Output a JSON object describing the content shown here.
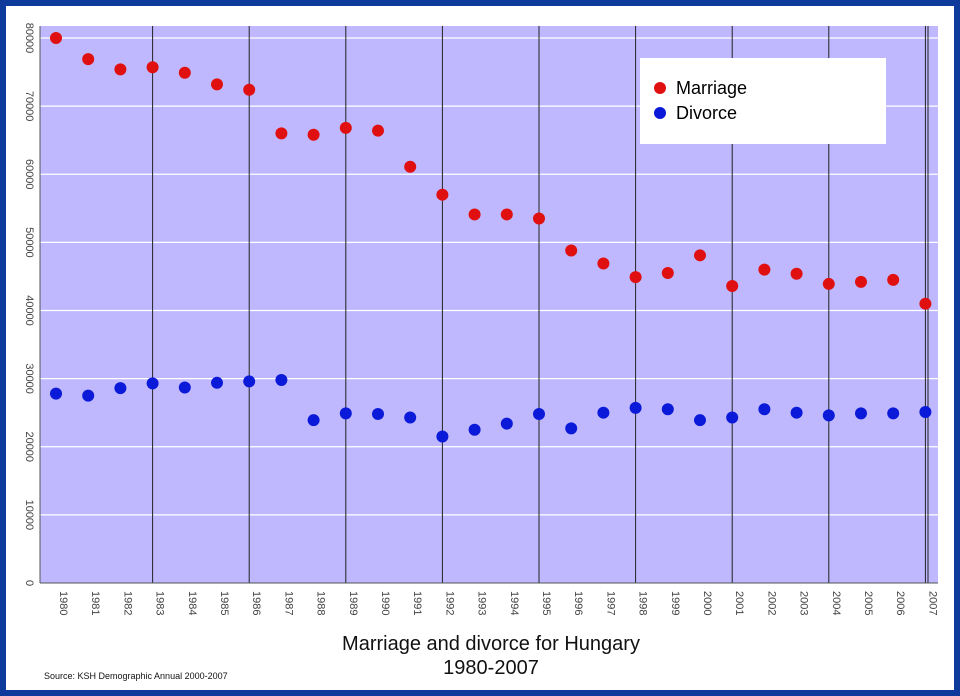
{
  "chart_data": {
    "type": "scatter",
    "title": "Marriage and divorce for Hungary",
    "subtitle": "1980-2007",
    "source": "Source: KSH Demographic Annual 2000-2007",
    "x": [
      1980,
      1981,
      1982,
      1983,
      1984,
      1985,
      1986,
      1987,
      1988,
      1989,
      1990,
      1991,
      1992,
      1993,
      1994,
      1995,
      1996,
      1997,
      1998,
      1999,
      2000,
      2001,
      2002,
      2003,
      2004,
      2005,
      2006,
      2007
    ],
    "x_tick_labels": [
      "1980",
      "1981",
      "1982",
      "1983",
      "1984",
      "1985",
      "1986",
      "1987",
      "1988",
      "1989",
      "1990",
      "1991",
      "1992",
      "1993",
      "1994",
      "1995",
      "1996",
      "1997",
      "1998",
      "1999",
      "2000",
      "2001",
      "2002",
      "2003",
      "2004",
      "2005",
      "2006",
      "2007"
    ],
    "y_tick_labels": [
      "0",
      "10000",
      "20000",
      "30000",
      "40000",
      "50000",
      "60000",
      "70000",
      "80000"
    ],
    "ylim": [
      0,
      80000
    ],
    "grid": true,
    "legend_position": "top-right",
    "series": [
      {
        "name": "Marriage",
        "color": "#e01010",
        "values": [
          80000,
          76900,
          75400,
          75700,
          74900,
          73200,
          72400,
          66000,
          65800,
          66800,
          66400,
          61100,
          57000,
          54100,
          54100,
          53500,
          48800,
          46900,
          44900,
          45500,
          48100,
          43600,
          46000,
          45400,
          43900,
          44200,
          44500,
          41000
        ]
      },
      {
        "name": "Divorce",
        "color": "#0a1ad8",
        "values": [
          27800,
          27500,
          28600,
          29300,
          28700,
          29400,
          29600,
          29800,
          23900,
          24900,
          24800,
          24300,
          21500,
          22500,
          23400,
          24800,
          22700,
          25000,
          25700,
          25500,
          23900,
          24300,
          25500,
          25000,
          24600,
          24900,
          24900,
          25100
        ]
      }
    ]
  },
  "colors": {
    "plot_background": "#c0b8ff",
    "frame_border": "#0e3a9c",
    "gridline_horizontal": "#ffffff",
    "gridline_vertical": "#222222"
  }
}
